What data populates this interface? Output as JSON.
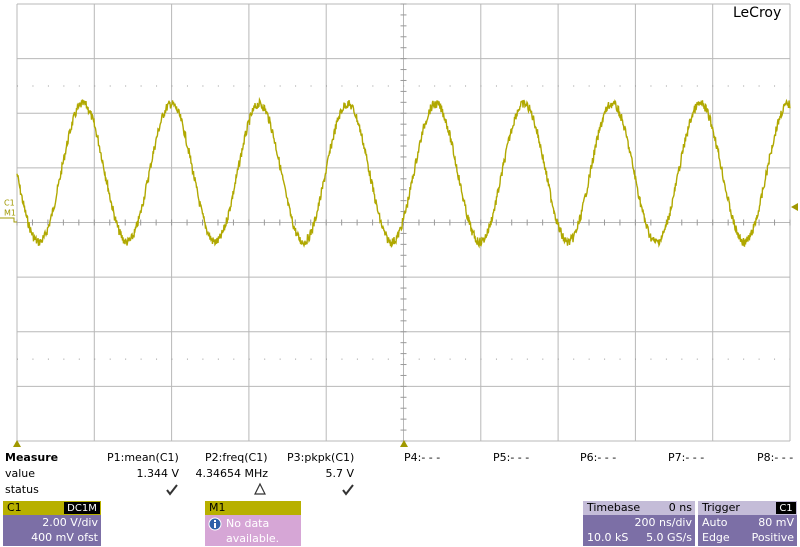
{
  "logo": "LeCroy",
  "trace_markers": [
    "C1",
    "M1"
  ],
  "measure": {
    "title": "Measure",
    "row_labels": [
      "value",
      "status"
    ],
    "params": [
      {
        "name": "P1:mean(C1)",
        "value": "1.344 V"
      },
      {
        "name": "P2:freq(C1)",
        "value": "4.34654 MHz"
      },
      {
        "name": "P3:pkpk(C1)",
        "value": "5.7 V"
      },
      {
        "name": "P4:- - -"
      },
      {
        "name": "P5:- - -"
      },
      {
        "name": "P6:- - -"
      },
      {
        "name": "P7:- - -"
      },
      {
        "name": "P8:- - -"
      }
    ]
  },
  "channel": {
    "name": "C1",
    "coupling": "DC1M",
    "scale": "2.00 V/div",
    "offset": "400 mV ofst"
  },
  "math": {
    "name": "M1",
    "message": [
      "No data",
      "available."
    ]
  },
  "timebase": {
    "title": "Timebase",
    "delay": "0 ns",
    "scale": "200 ns/div",
    "samples": "10.0 kS",
    "rate": "5.0 GS/s"
  },
  "trigger": {
    "title": "Trigger",
    "source": "C1",
    "mode": "Auto",
    "level": "80 mV",
    "type": "Edge",
    "slope": "Positive"
  }
}
